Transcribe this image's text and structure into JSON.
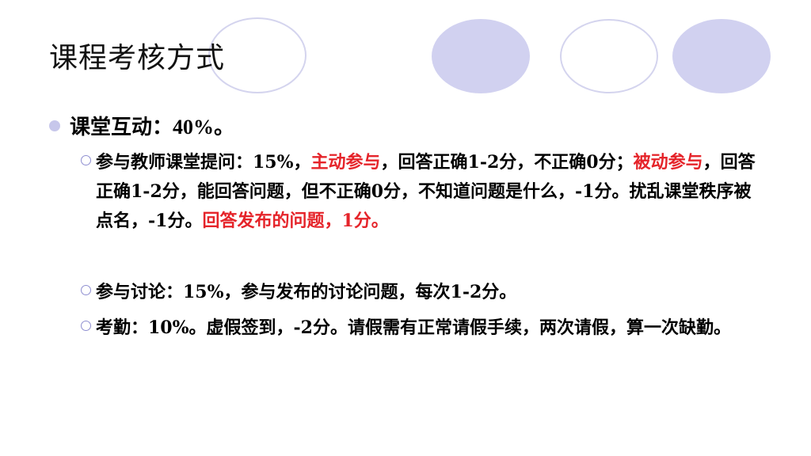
{
  "slide": {
    "title": "课程考核方式",
    "bullet1": {
      "label": "课堂互动",
      "value": "：40%。"
    },
    "item1": {
      "t1": "参与教师课堂提问：15%，",
      "r1": "主动参与",
      "t2": "，回答正确1-2分，不正确0分；",
      "r2": "被动参与",
      "t3": "，回答正确1-2分，能回答问题，但不正确0分，不知道问题是什么，-1分。扰乱课堂秩序被点名，-1分。",
      "r3": "回答发布的问题，1分。"
    },
    "item2": {
      "text": "参与讨论：15%，参与发布的讨论问题，每次1-2分。"
    },
    "item3": {
      "text": "考勤：10%。虚假签到，-2分。请假需有正常请假手续，两次请假，算一次缺勤。"
    }
  },
  "colors": {
    "accent_red": "#e5242a",
    "deco_fill": "#d1d1f0",
    "deco_outline": "#d4d4ee"
  }
}
